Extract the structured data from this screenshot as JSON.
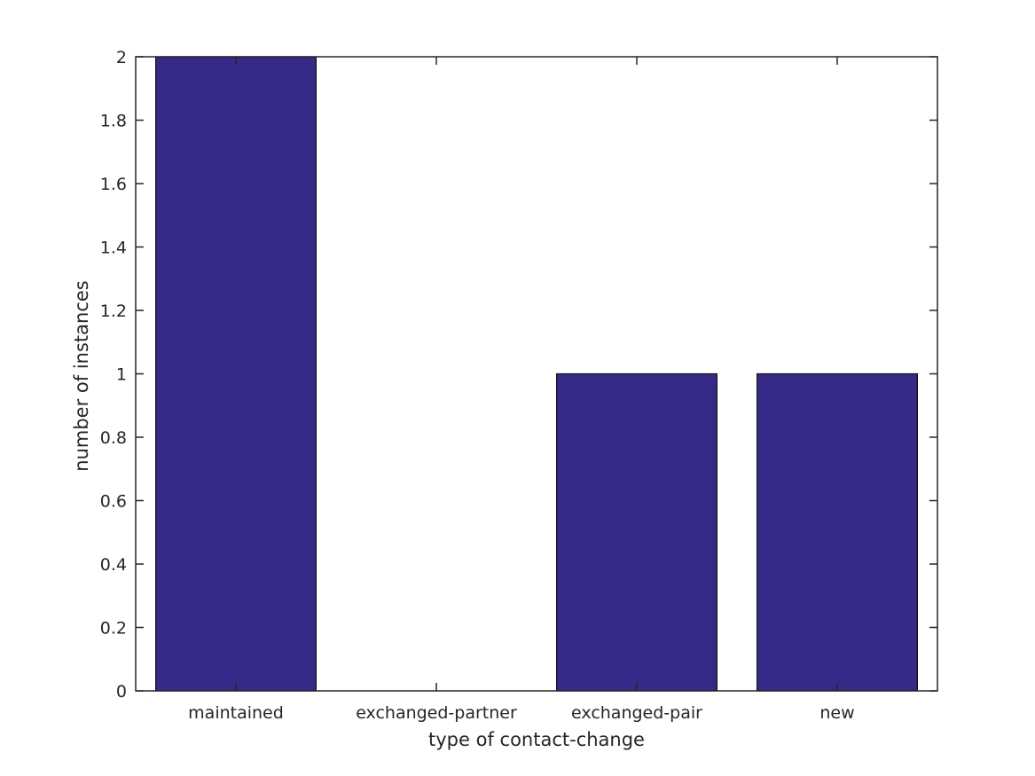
{
  "chart_data": {
    "type": "bar",
    "categories": [
      "maintained",
      "exchanged-partner",
      "exchanged-pair",
      "new"
    ],
    "values": [
      2,
      0,
      1,
      1
    ],
    "xlabel": "type of contact-change",
    "ylabel": "number of instances",
    "ylim": [
      0,
      2
    ],
    "ytick_step": 0.2,
    "ytick_labels": [
      "0",
      "0.2",
      "0.4",
      "0.6",
      "0.8",
      "1",
      "1.2",
      "1.4",
      "1.6",
      "1.8",
      "2"
    ],
    "bar_fill_color": "#352a87",
    "bar_edge_color": "#111111",
    "axis_color": "#262626",
    "text_color": "#262626",
    "background_color": "#ffffff",
    "bar_width_fraction": 0.8,
    "grid": false,
    "box": true,
    "tick_direction": "in",
    "legend": null
  }
}
